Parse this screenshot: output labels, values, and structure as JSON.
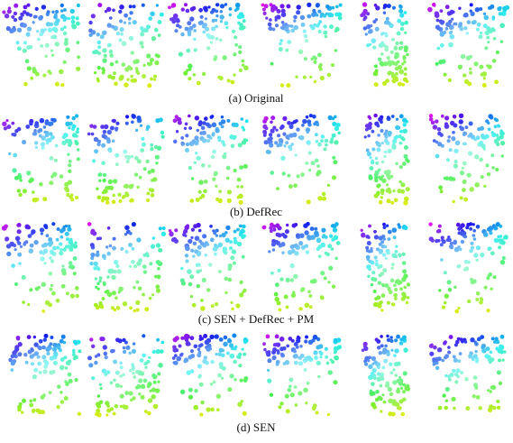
{
  "figure": {
    "captions": [
      "(a) Original",
      "(b) DefRec",
      "(c) SEN + DefRec + PM",
      "(d) SEN"
    ]
  }
}
